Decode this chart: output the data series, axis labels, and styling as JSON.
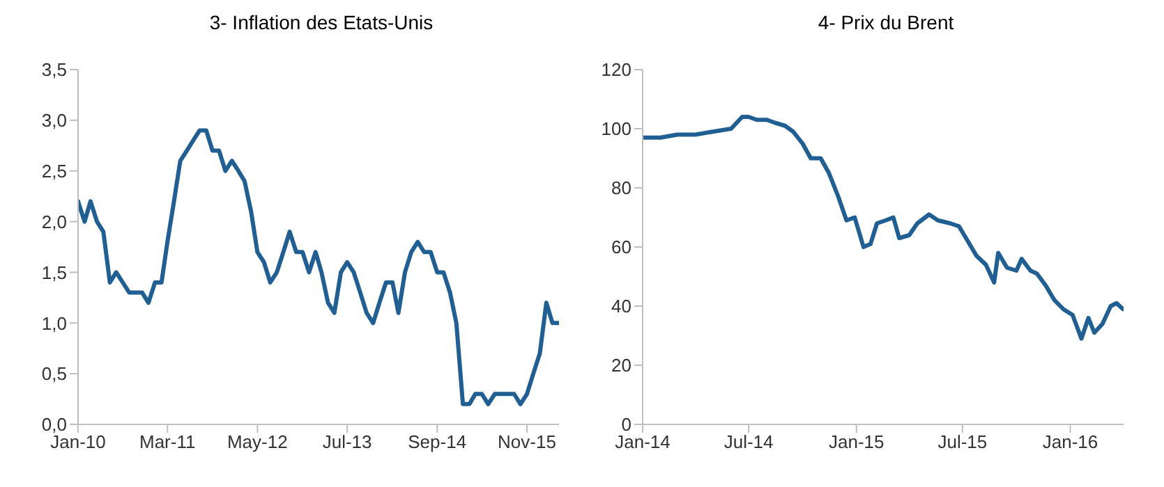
{
  "chart_data": [
    {
      "type": "line",
      "title": "3- Inflation des Etats-Unis",
      "x": [
        "2010-01",
        "2010-02",
        "2010-03",
        "2010-04",
        "2010-05",
        "2010-06",
        "2010-07",
        "2010-08",
        "2010-09",
        "2010-10",
        "2010-11",
        "2010-12",
        "2011-01",
        "2011-02",
        "2011-03",
        "2011-04",
        "2011-05",
        "2011-06",
        "2011-07",
        "2011-08",
        "2011-09",
        "2011-10",
        "2011-11",
        "2011-12",
        "2012-01",
        "2012-02",
        "2012-03",
        "2012-04",
        "2012-05",
        "2012-06",
        "2012-07",
        "2012-08",
        "2012-09",
        "2012-10",
        "2012-11",
        "2012-12",
        "2013-01",
        "2013-02",
        "2013-03",
        "2013-04",
        "2013-05",
        "2013-06",
        "2013-07",
        "2013-08",
        "2013-09",
        "2013-10",
        "2013-11",
        "2013-12",
        "2014-01",
        "2014-02",
        "2014-03",
        "2014-04",
        "2014-05",
        "2014-06",
        "2014-07",
        "2014-08",
        "2014-09",
        "2014-10",
        "2014-11",
        "2014-12",
        "2015-01",
        "2015-02",
        "2015-03",
        "2015-04",
        "2015-05",
        "2015-06",
        "2015-07",
        "2015-08",
        "2015-09",
        "2015-10",
        "2015-11",
        "2015-12",
        "2016-01",
        "2016-02",
        "2016-03",
        "2016-04"
      ],
      "series": [
        {
          "color": "#1f5f94",
          "values": [
            2.2,
            2.0,
            2.2,
            2.0,
            1.9,
            1.4,
            1.5,
            1.4,
            1.3,
            1.3,
            1.3,
            1.2,
            1.4,
            1.4,
            1.8,
            2.2,
            2.6,
            2.7,
            2.8,
            2.9,
            2.9,
            2.7,
            2.7,
            2.5,
            2.6,
            2.5,
            2.4,
            2.1,
            1.7,
            1.6,
            1.4,
            1.5,
            1.7,
            1.9,
            1.7,
            1.7,
            1.5,
            1.7,
            1.5,
            1.2,
            1.1,
            1.5,
            1.6,
            1.5,
            1.3,
            1.1,
            1.0,
            1.2,
            1.4,
            1.4,
            1.1,
            1.5,
            1.7,
            1.8,
            1.7,
            1.7,
            1.5,
            1.5,
            1.3,
            1.0,
            0.2,
            0.2,
            0.3,
            0.3,
            0.2,
            0.3,
            0.3,
            0.3,
            0.3,
            0.2,
            0.3,
            0.5,
            0.7,
            1.2,
            1.0,
            1.0
          ]
        }
      ],
      "xlim": [
        "2010-01",
        "2016-04"
      ],
      "xticks": [
        {
          "value": "2010-01",
          "label": "Jan-10"
        },
        {
          "value": "2011-03",
          "label": "Mar-11"
        },
        {
          "value": "2012-05",
          "label": "May-12"
        },
        {
          "value": "2013-07",
          "label": "Jul-13"
        },
        {
          "value": "2014-09",
          "label": "Sep-14"
        },
        {
          "value": "2015-11",
          "label": "Nov-15"
        }
      ],
      "ylim": [
        0,
        3.5
      ],
      "yticks": [
        {
          "value": 0,
          "label": "0,0"
        },
        {
          "value": 0.5,
          "label": "0,5"
        },
        {
          "value": 1,
          "label": "1,0"
        },
        {
          "value": 1.5,
          "label": "1,5"
        },
        {
          "value": 2,
          "label": "2,0"
        },
        {
          "value": 2.5,
          "label": "2,5"
        },
        {
          "value": 3,
          "label": "3,0"
        },
        {
          "value": 3.5,
          "label": "3,5"
        }
      ],
      "grid": false,
      "legend": false,
      "marker": "none",
      "line_style": "solid"
    },
    {
      "type": "line",
      "title": "4- Prix du Brent",
      "x": [
        "2014-01-01",
        "2014-02-01",
        "2014-03-01",
        "2014-04-01",
        "2014-05-01",
        "2014-06-01",
        "2014-06-20",
        "2014-07-01",
        "2014-07-15",
        "2014-08-01",
        "2014-08-15",
        "2014-09-01",
        "2014-09-15",
        "2014-10-01",
        "2014-10-15",
        "2014-11-01",
        "2014-11-15",
        "2014-12-01",
        "2014-12-15",
        "2014-12-29",
        "2015-01-13",
        "2015-01-25",
        "2015-02-05",
        "2015-02-20",
        "2015-03-05",
        "2015-03-15",
        "2015-04-01",
        "2015-04-15",
        "2015-05-05",
        "2015-05-20",
        "2015-06-10",
        "2015-06-25",
        "2015-07-10",
        "2015-07-25",
        "2015-08-10",
        "2015-08-24",
        "2015-08-31",
        "2015-09-15",
        "2015-10-01",
        "2015-10-10",
        "2015-10-25",
        "2015-11-05",
        "2015-11-20",
        "2015-12-05",
        "2015-12-20",
        "2016-01-05",
        "2016-01-20",
        "2016-02-01",
        "2016-02-11",
        "2016-02-25",
        "2016-03-10",
        "2016-03-20",
        "2016-03-31"
      ],
      "series": [
        {
          "color": "#1f5f94",
          "values": [
            97,
            97,
            98,
            98,
            99,
            100,
            104,
            104,
            103,
            103,
            102,
            101,
            99,
            95,
            90,
            90,
            85,
            77,
            69,
            70,
            60,
            61,
            68,
            69,
            70,
            63,
            64,
            68,
            71,
            69,
            68,
            67,
            62,
            57,
            54,
            48,
            58,
            53,
            52,
            56,
            52,
            51,
            47,
            42,
            39,
            37,
            29,
            36,
            31,
            34,
            40,
            41,
            39
          ]
        }
      ],
      "xlim": [
        "2014-01-01",
        "2016-04-01"
      ],
      "xticks": [
        {
          "value": "2014-01-01",
          "label": "Jan-14"
        },
        {
          "value": "2014-07-01",
          "label": "Jul-14"
        },
        {
          "value": "2015-01-01",
          "label": "Jan-15"
        },
        {
          "value": "2015-07-01",
          "label": "Jul-15"
        },
        {
          "value": "2016-01-01",
          "label": "Jan-16"
        }
      ],
      "ylim": [
        0,
        120
      ],
      "yticks": [
        0,
        20,
        40,
        60,
        80,
        100,
        120
      ],
      "grid": false,
      "legend": false,
      "marker": "none",
      "line_style": "solid"
    }
  ]
}
